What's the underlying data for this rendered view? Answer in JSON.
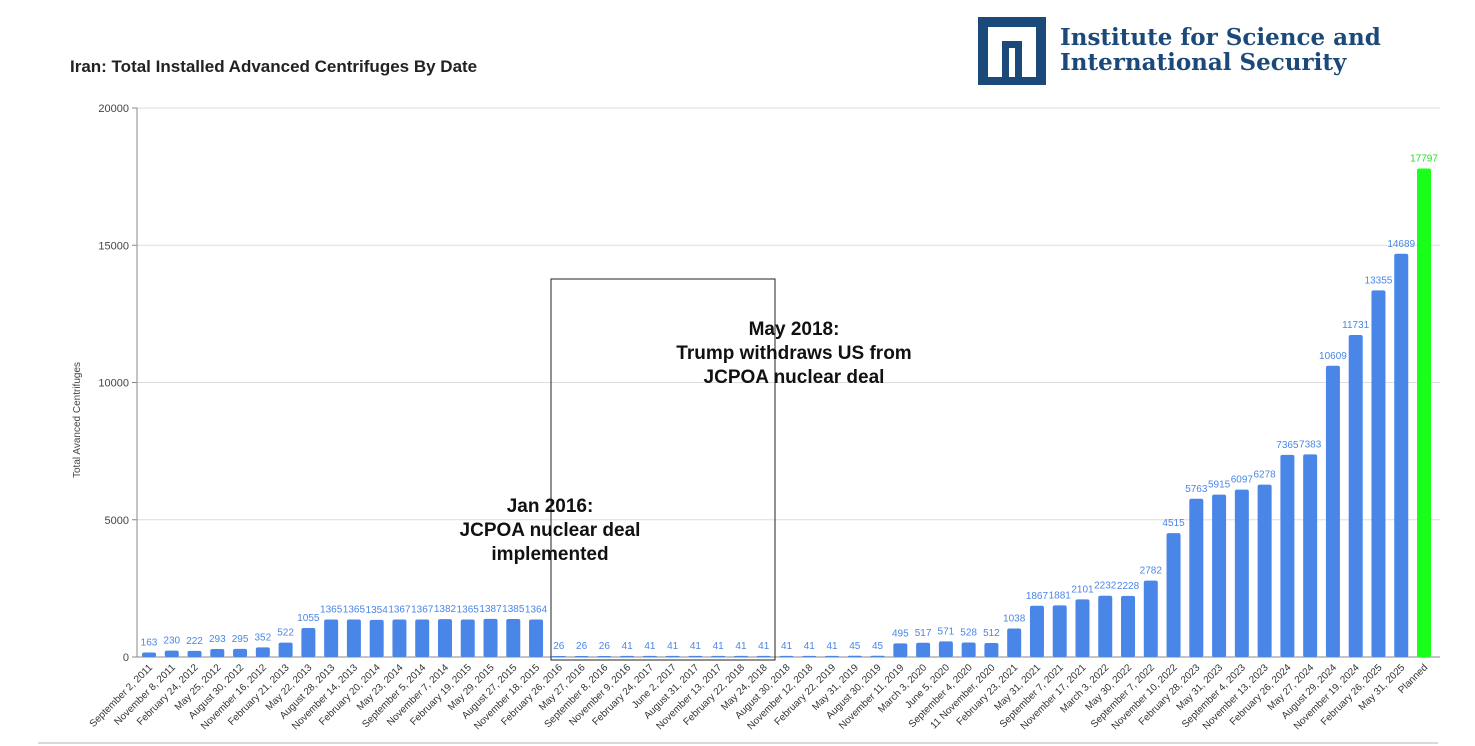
{
  "logo": {
    "line1": "Institute for Science and",
    "line2": "International Security",
    "color": "#1b4a7a"
  },
  "chart_data": {
    "type": "bar",
    "title": "Iran: Total Installed Advanced Centrifuges By Date",
    "ylabel": "Total Avanced Centrifuges",
    "xlabel": "",
    "ylim": [
      0,
      20000
    ],
    "yticks": [
      0,
      5000,
      10000,
      15000,
      20000
    ],
    "grid": true,
    "bar_color": "#4a86e8",
    "highlight_color": "#1aff1a",
    "highlight_label_color": "#22dd22",
    "label_color": "#4a86e8",
    "categories": [
      "September 2, 2011",
      "November 8, 2011",
      "February 24, 2012",
      "May 25, 2012",
      "August 30, 2012",
      "November 16, 2012",
      "February 21, 2013",
      "May 22, 2013",
      "August 28, 2013",
      "November 14, 2013",
      "February 20, 2014",
      "May 23, 2014",
      "September 5, 2014",
      "November 7, 2014",
      "February 19, 2015",
      "May 29, 2015",
      "August 27, 2015",
      "November 18, 2015",
      "February 26, 2016",
      "May 27, 2016",
      "September 8, 2016",
      "November 9, 2016",
      "February 24, 2017",
      "June 2, 2017",
      "August 31, 2017",
      "November 13, 2017",
      "February 22, 2018",
      "May 24, 2018",
      "August 30, 2018",
      "November 12, 2018",
      "February 22, 2019",
      "May 31, 2019",
      "August 30, 2019",
      "November 11, 2019",
      "March 3, 2020",
      "June 5, 2020",
      "September 4, 2020",
      "11 November, 2020",
      "February 23, 2021",
      "May 31, 2021",
      "September 7, 2021",
      "November 17, 2021",
      "March 3, 2022",
      "May 30, 2022",
      "September 7, 2022",
      "November 10, 2022",
      "February 28, 2023",
      "May 31, 2023",
      "September 4, 2023",
      "November 13, 2023",
      "February 26, 2024",
      "May 27, 2024",
      "August 29, 2024",
      "November 19, 2024",
      "February 26, 2025",
      "May 31, 2025",
      "Planned"
    ],
    "values": [
      163,
      230,
      222,
      293,
      295,
      352,
      522,
      1055,
      1365,
      1365,
      1354,
      1367,
      1367,
      1382,
      1365,
      1387,
      1385,
      1364,
      26,
      26,
      26,
      41,
      41,
      41,
      41,
      41,
      41,
      41,
      41,
      41,
      41,
      45,
      45,
      495,
      517,
      571,
      528,
      512,
      1038,
      1867,
      1881,
      2101,
      2232,
      2228,
      2782,
      4515,
      5763,
      5915,
      6097,
      6278,
      7365,
      7383,
      10609,
      11731,
      13355,
      14689,
      17797
    ],
    "highlight_index": 56,
    "annotations": [
      {
        "lines": [
          "Jan 2016:",
          "JCPOA nuclear deal",
          "implemented"
        ]
      },
      {
        "lines": [
          "May 2018:",
          "Trump withdraws US from",
          "JCPOA nuclear deal"
        ]
      }
    ]
  }
}
